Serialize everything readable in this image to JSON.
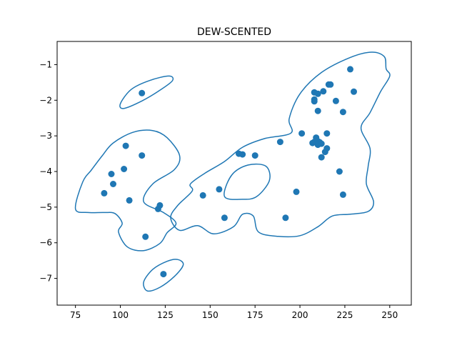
{
  "chart_data": {
    "type": "scatter",
    "title": "DEW-SCENTED",
    "xlabel": "",
    "ylabel": "",
    "xlim": [
      64.8,
      262.0
    ],
    "ylim": [
      -7.75,
      -0.35
    ],
    "xticks": [
      75,
      100,
      125,
      150,
      175,
      200,
      225,
      250
    ],
    "yticks": [
      -7,
      -6,
      -5,
      -4,
      -3,
      -2,
      -1
    ],
    "grid": false,
    "series_color": "#1f77b4",
    "points": [
      [
        112,
        -1.8
      ],
      [
        124,
        -6.88
      ],
      [
        103,
        -3.28
      ],
      [
        112,
        -3.55
      ],
      [
        95,
        -4.07
      ],
      [
        102,
        -3.93
      ],
      [
        96,
        -4.35
      ],
      [
        91,
        -4.61
      ],
      [
        105,
        -4.81
      ],
      [
        122,
        -4.95
      ],
      [
        121,
        -5.05
      ],
      [
        114,
        -5.83
      ],
      [
        146,
        -4.67
      ],
      [
        155,
        -4.5
      ],
      [
        158,
        -5.3
      ],
      [
        166,
        -3.5
      ],
      [
        168,
        -3.52
      ],
      [
        175,
        -3.55
      ],
      [
        189,
        -3.17
      ],
      [
        198,
        -4.57
      ],
      [
        192,
        -5.3
      ],
      [
        201,
        -2.93
      ],
      [
        228,
        -1.13
      ],
      [
        230,
        -1.76
      ],
      [
        216,
        -1.56
      ],
      [
        217,
        -1.56
      ],
      [
        213,
        -1.75
      ],
      [
        208,
        -1.78
      ],
      [
        210,
        -1.82
      ],
      [
        208,
        -1.98
      ],
      [
        208,
        -2.03
      ],
      [
        220,
        -2.02
      ],
      [
        210,
        -2.3
      ],
      [
        224,
        -2.33
      ],
      [
        215,
        -2.93
      ],
      [
        209,
        -3.05
      ],
      [
        209,
        -3.12
      ],
      [
        207,
        -3.2
      ],
      [
        208,
        -3.17
      ],
      [
        210,
        -3.15
      ],
      [
        211,
        -3.18
      ],
      [
        210,
        -3.25
      ],
      [
        212,
        -3.22
      ],
      [
        215,
        -3.35
      ],
      [
        214,
        -3.45
      ],
      [
        212,
        -3.6
      ],
      [
        222,
        -4.0
      ],
      [
        224,
        -4.65
      ]
    ],
    "contours": [
      [
        [
          100,
          -2.1
        ],
        [
          106,
          -1.7
        ],
        [
          116,
          -1.45
        ],
        [
          127,
          -1.32
        ],
        [
          129,
          -1.45
        ],
        [
          122,
          -1.72
        ],
        [
          112,
          -2.02
        ],
        [
          102,
          -2.23
        ]
      ],
      [
        [
          113,
          -7.1
        ],
        [
          118,
          -6.75
        ],
        [
          126,
          -6.52
        ],
        [
          132,
          -6.47
        ],
        [
          135,
          -6.62
        ],
        [
          130,
          -6.95
        ],
        [
          122,
          -7.25
        ],
        [
          115,
          -7.35
        ]
      ],
      [
        [
          75,
          -5.05
        ],
        [
          79,
          -4.3
        ],
        [
          84,
          -3.95
        ],
        [
          90,
          -3.55
        ],
        [
          96,
          -3.2
        ],
        [
          107,
          -2.9
        ],
        [
          118,
          -2.85
        ],
        [
          126,
          -3.05
        ],
        [
          133,
          -3.55
        ],
        [
          130,
          -3.95
        ],
        [
          118,
          -4.35
        ],
        [
          113,
          -4.85
        ],
        [
          124,
          -5.15
        ],
        [
          131,
          -5.45
        ],
        [
          126,
          -5.72
        ],
        [
          122,
          -6.02
        ],
        [
          113,
          -6.22
        ],
        [
          104,
          -6.12
        ],
        [
          99,
          -5.7
        ],
        [
          101,
          -5.45
        ],
        [
          97,
          -5.18
        ],
        [
          91,
          -5.15
        ],
        [
          82,
          -5.15
        ]
      ],
      [
        [
          139,
          -4.35
        ],
        [
          147,
          -4.05
        ],
        [
          158,
          -3.72
        ],
        [
          168,
          -3.32
        ],
        [
          180,
          -3.08
        ],
        [
          195,
          -2.92
        ],
        [
          194,
          -2.52
        ],
        [
          200,
          -1.82
        ],
        [
          212,
          -1.22
        ],
        [
          228,
          -0.8
        ],
        [
          240,
          -0.65
        ],
        [
          247,
          -0.78
        ],
        [
          248,
          -1.12
        ],
        [
          250,
          -1.32
        ],
        [
          245,
          -1.75
        ],
        [
          239,
          -2.35
        ],
        [
          234,
          -2.78
        ],
        [
          239,
          -3.35
        ],
        [
          238,
          -3.85
        ],
        [
          237,
          -4.35
        ],
        [
          241,
          -4.85
        ],
        [
          238,
          -5.12
        ],
        [
          228,
          -5.2
        ],
        [
          218,
          -5.25
        ],
        [
          210,
          -5.55
        ],
        [
          200,
          -5.8
        ],
        [
          188,
          -5.82
        ],
        [
          177,
          -5.7
        ],
        [
          174,
          -5.25
        ],
        [
          168,
          -5.2
        ],
        [
          163,
          -5.55
        ],
        [
          152,
          -5.75
        ],
        [
          143,
          -5.52
        ],
        [
          133,
          -5.65
        ],
        [
          128,
          -5.3
        ],
        [
          132,
          -4.95
        ],
        [
          140,
          -4.55
        ]
      ],
      [
        [
          158,
          -4.7
        ],
        [
          162,
          -4.1
        ],
        [
          171,
          -3.82
        ],
        [
          181,
          -3.85
        ],
        [
          183,
          -4.25
        ],
        [
          176,
          -4.7
        ],
        [
          168,
          -4.78
        ]
      ]
    ]
  }
}
